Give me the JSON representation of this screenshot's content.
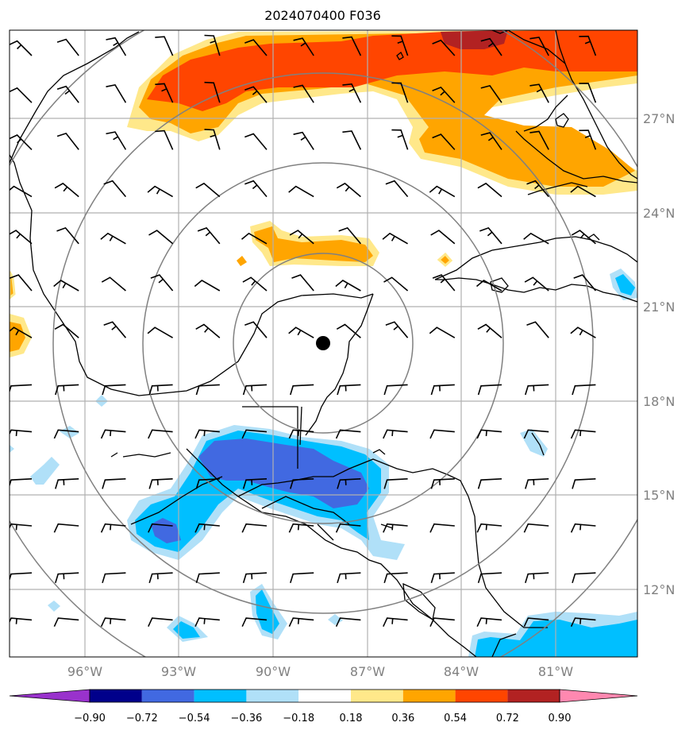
{
  "title": "2024070400 F036",
  "map": {
    "lon_range": [
      -98,
      -78
    ],
    "lat_range": [
      9.8,
      29.8
    ],
    "lon_ticks": [
      "96°W",
      "93°W",
      "90°W",
      "87°W",
      "84°W",
      "81°W"
    ],
    "lon_tick_values": [
      -96,
      -93,
      -90,
      -87,
      -84,
      -81
    ],
    "lat_ticks": [
      "12°N",
      "15°N",
      "18°N",
      "21°N",
      "24°N",
      "27°N"
    ],
    "lat_tick_values": [
      12,
      15,
      18,
      21,
      24,
      27
    ],
    "center": {
      "lon": -88.0,
      "lat": 19.8
    },
    "range_rings_deg": [
      3,
      6,
      9,
      12
    ],
    "grid": true,
    "wind_barbs": true
  },
  "colorbar": {
    "labels": [
      "−0.90",
      "−0.72",
      "−0.54",
      "−0.36",
      "−0.18",
      "0.18",
      "0.36",
      "0.54",
      "0.72",
      "0.90"
    ],
    "colors": [
      "#9932cc",
      "#00008b",
      "#4169e1",
      "#00bfff",
      "#b0e0f8",
      "#ffffff",
      "#ffe88a",
      "#ffa500",
      "#ff4500",
      "#b22222",
      "#ff88b0"
    ],
    "extend": "both"
  }
}
